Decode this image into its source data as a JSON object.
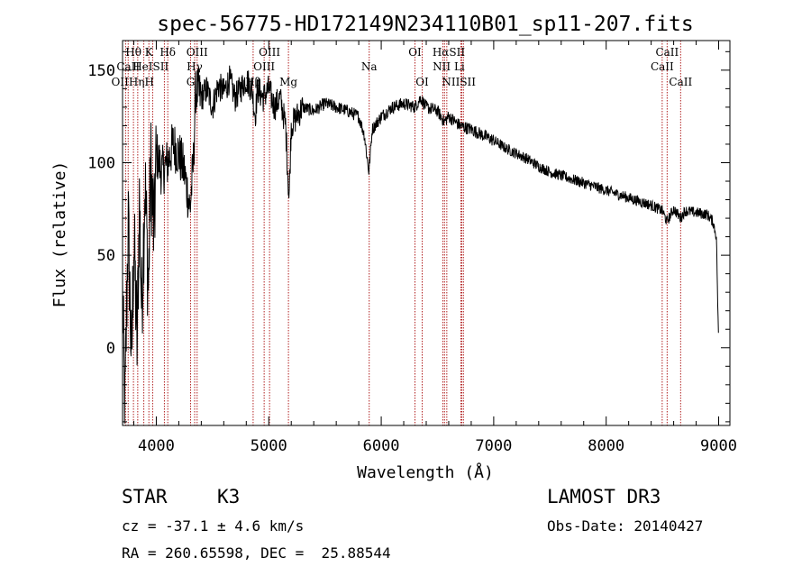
{
  "chart_data": {
    "type": "line",
    "title": "spec-56775-HD172149N234110B01_sp11-207.fits",
    "xlabel": "Wavelength (Å)",
    "ylabel": "Flux (relative)",
    "xlim": [
      3700,
      9100
    ],
    "ylim": [
      -42,
      166
    ],
    "xticks": [
      4000,
      5000,
      6000,
      7000,
      8000,
      9000
    ],
    "yticks": [
      0,
      50,
      100,
      150
    ],
    "series": [
      {
        "name": "spectrum",
        "color": "#000000",
        "anchors": [
          [
            3700,
            30
          ],
          [
            3720,
            -40
          ],
          [
            3750,
            70
          ],
          [
            3780,
            -10
          ],
          [
            3800,
            60
          ],
          [
            3830,
            0
          ],
          [
            3850,
            80
          ],
          [
            3870,
            20
          ],
          [
            3900,
            90
          ],
          [
            3930,
            30
          ],
          [
            3950,
            100
          ],
          [
            3980,
            60
          ],
          [
            4000,
            105
          ],
          [
            4050,
            95
          ],
          [
            4100,
            100
          ],
          [
            4150,
            110
          ],
          [
            4200,
            105
          ],
          [
            4250,
            95
          ],
          [
            4300,
            75
          ],
          [
            4330,
            100
          ],
          [
            4350,
            140
          ],
          [
            4400,
            135
          ],
          [
            4450,
            140
          ],
          [
            4500,
            130
          ],
          [
            4550,
            142
          ],
          [
            4600,
            138
          ],
          [
            4650,
            145
          ],
          [
            4700,
            135
          ],
          [
            4750,
            140
          ],
          [
            4800,
            145
          ],
          [
            4850,
            140
          ],
          [
            4880,
            125
          ],
          [
            4900,
            140
          ],
          [
            4950,
            135
          ],
          [
            5000,
            140
          ],
          [
            5050,
            130
          ],
          [
            5100,
            135
          ],
          [
            5150,
            120
          ],
          [
            5180,
            80
          ],
          [
            5200,
            120
          ],
          [
            5250,
            125
          ],
          [
            5300,
            130
          ],
          [
            5400,
            128
          ],
          [
            5500,
            132
          ],
          [
            5600,
            130
          ],
          [
            5700,
            128
          ],
          [
            5800,
            125
          ],
          [
            5850,
            115
          ],
          [
            5890,
            95
          ],
          [
            5920,
            118
          ],
          [
            6000,
            125
          ],
          [
            6100,
            130
          ],
          [
            6200,
            132
          ],
          [
            6300,
            130
          ],
          [
            6350,
            135
          ],
          [
            6400,
            130
          ],
          [
            6500,
            128
          ],
          [
            6560,
            122
          ],
          [
            6600,
            125
          ],
          [
            6700,
            120
          ],
          [
            6800,
            118
          ],
          [
            6900,
            115
          ],
          [
            7000,
            112
          ],
          [
            7100,
            108
          ],
          [
            7200,
            105
          ],
          [
            7300,
            102
          ],
          [
            7400,
            98
          ],
          [
            7500,
            95
          ],
          [
            7600,
            93
          ],
          [
            7700,
            91
          ],
          [
            7800,
            89
          ],
          [
            7900,
            87
          ],
          [
            8000,
            85
          ],
          [
            8100,
            83
          ],
          [
            8200,
            81
          ],
          [
            8300,
            79
          ],
          [
            8400,
            77
          ],
          [
            8500,
            74
          ],
          [
            8540,
            68
          ],
          [
            8600,
            75
          ],
          [
            8662,
            70
          ],
          [
            8700,
            74
          ],
          [
            8800,
            73
          ],
          [
            8900,
            72
          ],
          [
            8950,
            68
          ],
          [
            8980,
            60
          ],
          [
            9000,
            0
          ]
        ]
      }
    ],
    "lines": [
      {
        "label": "Hθ",
        "x": 3797
      },
      {
        "label": "CaII",
        "x": 3750
      },
      {
        "label": "OII",
        "x": 3727
      },
      {
        "label": "Hη",
        "x": 3835
      },
      {
        "label": "HeI",
        "x": 3889
      },
      {
        "label": "K",
        "x": 3934
      },
      {
        "label": "H",
        "x": 3968
      },
      {
        "label": "Hδ",
        "x": 4102
      },
      {
        "label": "SII",
        "x": 4072
      },
      {
        "label": "G",
        "x": 4305
      },
      {
        "label": "Hγ",
        "x": 4341
      },
      {
        "label": "OIII",
        "x": 4363
      },
      {
        "label": "Hβ",
        "x": 4861
      },
      {
        "label": "OIII",
        "x": 4959
      },
      {
        "label": "OIII",
        "x": 5007
      },
      {
        "label": "Mg",
        "x": 5175
      },
      {
        "label": "Na",
        "x": 5893
      },
      {
        "label": "OI",
        "x": 6300
      },
      {
        "label": "OI",
        "x": 6364
      },
      {
        "label": "NII",
        "x": 6548
      },
      {
        "label": "Hα",
        "x": 6563
      },
      {
        "label": "NII",
        "x": 6583
      },
      {
        "label": "Li",
        "x": 6708
      },
      {
        "label": "SII",
        "x": 6716
      },
      {
        "label": "SII",
        "x": 6731
      },
      {
        "label": "CaII",
        "x": 8498
      },
      {
        "label": "CaII",
        "x": 8542
      },
      {
        "label": "CaII",
        "x": 8662
      }
    ],
    "line_labels": [
      {
        "text": "Hθ",
        "x": 3797,
        "row": 0
      },
      {
        "text": "K",
        "x": 3934,
        "row": 0
      },
      {
        "text": "Hδ",
        "x": 4102,
        "row": 0
      },
      {
        "text": "OIII",
        "x": 4363,
        "row": 0
      },
      {
        "text": "OIII",
        "x": 5007,
        "row": 0
      },
      {
        "text": "OI",
        "x": 6300,
        "row": 0
      },
      {
        "text": "HαSII",
        "x": 6600,
        "row": 0
      },
      {
        "text": "CaII",
        "x": 8542,
        "row": 0
      },
      {
        "text": "CaII",
        "x": 3750,
        "row": 1
      },
      {
        "text": "HeISII",
        "x": 3950,
        "row": 1
      },
      {
        "text": "Hγ",
        "x": 4341,
        "row": 1
      },
      {
        "text": "OIII",
        "x": 4959,
        "row": 1
      },
      {
        "text": "Na",
        "x": 5893,
        "row": 1
      },
      {
        "text": "NII Li",
        "x": 6600,
        "row": 1
      },
      {
        "text": "CaII",
        "x": 8498,
        "row": 1
      },
      {
        "text": "OIIHηH",
        "x": 3790,
        "row": 2
      },
      {
        "text": "G",
        "x": 4305,
        "row": 2
      },
      {
        "text": "Hβ",
        "x": 4861,
        "row": 2
      },
      {
        "text": "Mg",
        "x": 5175,
        "row": 2
      },
      {
        "text": "OI",
        "x": 6364,
        "row": 2
      },
      {
        "text": "NIISII",
        "x": 6690,
        "row": 2
      },
      {
        "text": "CaII",
        "x": 8662,
        "row": 2
      }
    ]
  },
  "info": {
    "object_class": "STAR",
    "subclass": "K3",
    "survey": "LAMOST DR3",
    "cz": "cz = -37.1 ± 4.6 km/s",
    "obs_date": "Obs-Date: 20140427",
    "coords": "RA = 260.65598, DEC =  25.88544"
  }
}
